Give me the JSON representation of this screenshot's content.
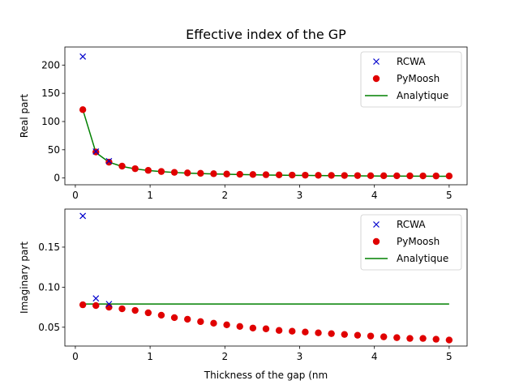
{
  "chart_data": [
    {
      "type": "scatter",
      "title": "Effective index of the GP",
      "xlabel": "",
      "ylabel": "Real part",
      "xlim": [
        -0.14,
        5.24
      ],
      "ylim": [
        -12,
        232
      ],
      "xticks": [
        0,
        1,
        2,
        3,
        4,
        5
      ],
      "yticks": [
        0,
        50,
        100,
        150,
        200
      ],
      "grid": false,
      "legend_position": "top-right",
      "series": [
        {
          "name": "RCWA",
          "marker": "x",
          "color": "#0000cc",
          "x": [
            0.1,
            0.275,
            0.45
          ],
          "y": [
            215,
            47,
            30
          ]
        },
        {
          "name": "PyMoosh",
          "marker": "o",
          "color": "#e00000",
          "x": [
            0.1,
            0.275,
            0.45,
            0.625,
            0.8,
            0.975,
            1.15,
            1.325,
            1.5,
            1.675,
            1.85,
            2.025,
            2.2,
            2.375,
            2.55,
            2.725,
            2.9,
            3.075,
            3.25,
            3.425,
            3.6,
            3.775,
            3.95,
            4.125,
            4.3,
            4.475,
            4.65,
            4.825,
            5.0
          ],
          "y": [
            121,
            46,
            28,
            21,
            16.5,
            13.5,
            11.5,
            10,
            9,
            8.3,
            7.6,
            7,
            6.6,
            6.2,
            5.8,
            5.5,
            5.2,
            5,
            4.8,
            4.6,
            4.4,
            4.3,
            4.1,
            4,
            3.9,
            3.8,
            3.7,
            3.6,
            3.5
          ]
        },
        {
          "name": "Analytique",
          "marker": "line",
          "color": "#008000",
          "x": [
            0.1,
            0.275,
            0.45,
            0.625,
            0.8,
            0.975,
            1.15,
            1.325,
            1.5,
            1.675,
            1.85,
            2.025,
            2.2,
            2.375,
            2.55,
            2.725,
            2.9,
            3.075,
            3.25,
            3.425,
            3.6,
            3.775,
            3.95,
            4.125,
            4.3,
            4.475,
            4.65,
            4.825,
            5.0
          ],
          "y": [
            121,
            45,
            28,
            20.5,
            16.2,
            13.3,
            11.3,
            9.8,
            8.7,
            7.9,
            7.2,
            6.6,
            6.1,
            5.7,
            5.3,
            5,
            4.7,
            4.5,
            4.3,
            4.1,
            3.9,
            3.8,
            3.6,
            3.5,
            3.4,
            3.3,
            3.2,
            3.1,
            3
          ]
        }
      ]
    },
    {
      "type": "scatter",
      "title": "",
      "xlabel": "Thickness of the gap (nm",
      "ylabel": "Imaginary part",
      "xlim": [
        -0.14,
        5.24
      ],
      "ylim": [
        0.0265,
        0.1975
      ],
      "xticks": [
        0,
        1,
        2,
        3,
        4,
        5
      ],
      "yticks": [
        0.05,
        0.1,
        0.15
      ],
      "yticklabels": [
        "0.05",
        "0.10",
        "0.15"
      ],
      "grid": false,
      "legend_position": "top-right",
      "series": [
        {
          "name": "RCWA",
          "marker": "x",
          "color": "#0000cc",
          "x": [
            0.1,
            0.275,
            0.45
          ],
          "y": [
            0.189,
            0.086,
            0.079
          ]
        },
        {
          "name": "PyMoosh",
          "marker": "o",
          "color": "#e00000",
          "x": [
            0.1,
            0.275,
            0.45,
            0.625,
            0.8,
            0.975,
            1.15,
            1.325,
            1.5,
            1.675,
            1.85,
            2.025,
            2.2,
            2.375,
            2.55,
            2.725,
            2.9,
            3.075,
            3.25,
            3.425,
            3.6,
            3.775,
            3.95,
            4.125,
            4.3,
            4.475,
            4.65,
            4.825,
            5.0
          ],
          "y": [
            0.078,
            0.077,
            0.075,
            0.073,
            0.071,
            0.068,
            0.065,
            0.062,
            0.06,
            0.057,
            0.055,
            0.053,
            0.051,
            0.049,
            0.048,
            0.046,
            0.045,
            0.044,
            0.043,
            0.042,
            0.041,
            0.04,
            0.039,
            0.038,
            0.037,
            0.036,
            0.036,
            0.035,
            0.034
          ]
        },
        {
          "name": "Analytique",
          "marker": "line",
          "color": "#008000",
          "x": [
            0.1,
            5.0
          ],
          "y": [
            0.079,
            0.079
          ]
        }
      ]
    }
  ]
}
